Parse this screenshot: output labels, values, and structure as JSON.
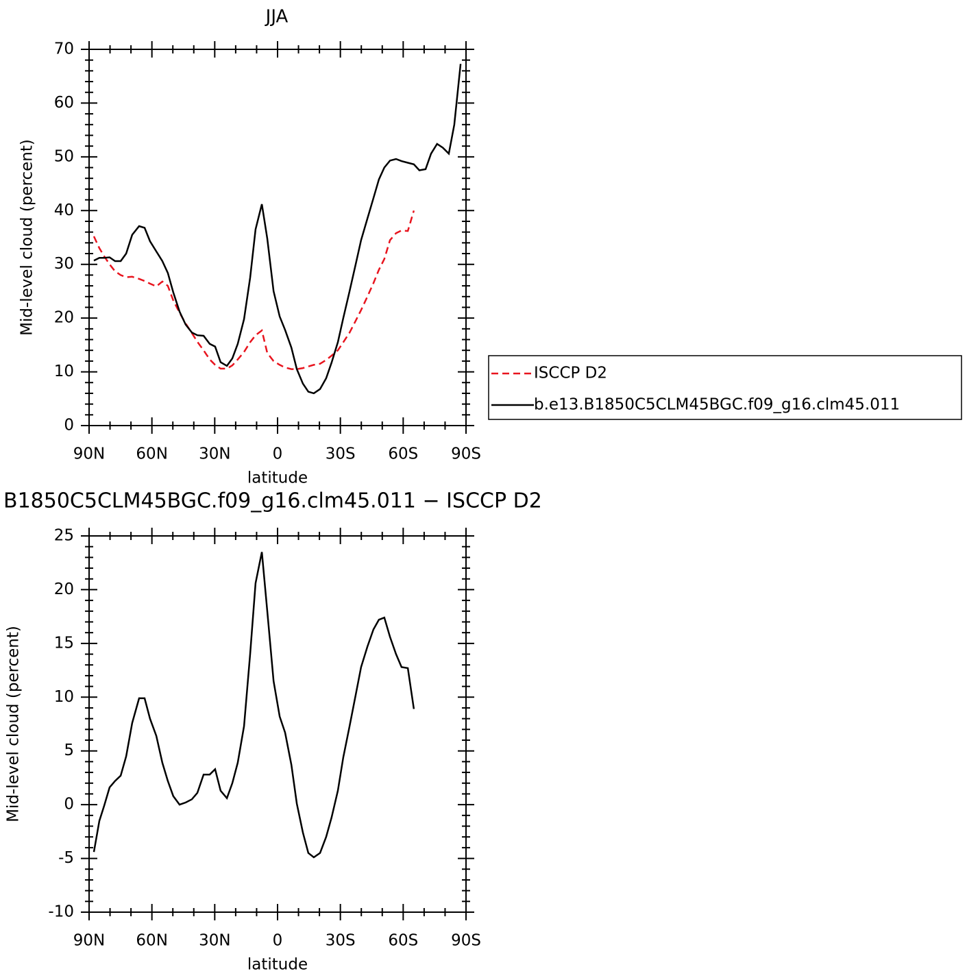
{
  "chart_data": [
    {
      "type": "line",
      "title": "JJA",
      "xlabel": "latitude",
      "ylabel": "Mid-level cloud (percent)",
      "x": [
        87.7,
        85.1,
        82.8,
        80.2,
        77.6,
        74.9,
        72.3,
        69.4,
        66.1,
        63.5,
        60.9,
        57.9,
        55.0,
        52.4,
        49.8,
        46.8,
        43.9,
        40.9,
        38.3,
        35.3,
        32.4,
        29.8,
        27.2,
        24.2,
        21.6,
        19.0,
        16.0,
        13.1,
        10.5,
        7.5,
        4.9,
        1.9,
        -1.0,
        -3.6,
        -6.6,
        -9.2,
        -12.1,
        -14.7,
        -17.3,
        -20.3,
        -23.2,
        -25.8,
        -28.8,
        -31.4,
        -34.4,
        -37.3,
        -39.9,
        -42.9,
        -45.8,
        -48.4,
        -51.0,
        -53.7,
        -56.6,
        -59.2,
        -62.2,
        -65.1,
        -67.7,
        -70.7,
        -73.3,
        -76.2,
        -78.9,
        -81.8,
        -84.4,
        -87.4
      ],
      "series": [
        {
          "name": "ISCCP D2",
          "color": "#e8141e",
          "line_style": "dashed",
          "values": [
            35.2,
            33,
            31.5,
            30,
            28.7,
            28,
            27.6,
            27.7,
            27.3,
            26.9,
            26.4,
            25.9,
            26.8,
            26,
            23.3,
            21,
            19,
            17.2,
            15.6,
            14,
            12.3,
            11.3,
            10.6,
            10.6,
            11.2,
            12.3,
            13.7,
            15.5,
            16.8,
            17.7,
            13.5,
            12,
            11.3,
            10.8,
            10.5,
            10.5,
            10.7,
            11,
            11.3,
            11.5,
            12.2,
            13,
            14,
            15.5,
            17.3,
            19.5,
            21.5,
            24,
            26.5,
            29,
            31,
            34.5,
            35.8,
            36.3,
            36.2,
            40,
            null,
            null,
            null,
            null,
            null,
            null,
            null,
            null
          ]
        },
        {
          "name": "b.e13.B1850C5CLM45BGC.f09_g16.clm45.011",
          "color": "#000000",
          "line_style": "solid",
          "values": [
            30.7,
            31.2,
            31.2,
            31.3,
            30.6,
            30.6,
            32,
            35.5,
            37.1,
            36.8,
            34.3,
            32.4,
            30.6,
            28.4,
            24.8,
            21.2,
            18.8,
            17.3,
            16.8,
            16.7,
            15.2,
            14.7,
            11.8,
            11.1,
            12.5,
            15.2,
            19.8,
            27.5,
            36.5,
            41.2,
            34.8,
            25,
            20.3,
            17.8,
            14.5,
            10.5,
            7.8,
            6.3,
            6,
            6.8,
            8.8,
            11.7,
            15.5,
            20,
            25,
            30,
            34.5,
            38.5,
            42.3,
            45.8,
            48,
            49.3,
            49.6,
            49.2,
            48.9,
            48.6,
            47.5,
            47.7,
            50.6,
            52.4,
            51.7,
            50.6,
            56,
            67.3
          ]
        }
      ],
      "xlim": [
        90,
        -90
      ],
      "xticks": [
        {
          "value": 90,
          "label": "90N"
        },
        {
          "value": 60,
          "label": "60N"
        },
        {
          "value": 30,
          "label": "30N"
        },
        0,
        {
          "value": -30,
          "label": "30S"
        },
        {
          "value": -60,
          "label": "60S"
        },
        {
          "value": -90,
          "label": "90S"
        }
      ],
      "ylim": [
        0,
        70
      ],
      "yticks": [
        0,
        10,
        20,
        30,
        40,
        50,
        60,
        70
      ],
      "legend": "right"
    },
    {
      "type": "line",
      "title": "B1850C5CLM45BGC.f09_g16.clm45.011 − ISCCP D2",
      "xlabel": "latitude",
      "ylabel": "Mid-level cloud (percent)",
      "x": [
        87.7,
        85.1,
        82.8,
        80.2,
        77.6,
        74.9,
        72.3,
        69.4,
        66.1,
        63.5,
        60.9,
        57.9,
        55.0,
        52.4,
        49.8,
        46.8,
        43.9,
        40.9,
        38.3,
        35.3,
        32.4,
        29.8,
        27.2,
        24.2,
        21.6,
        19.0,
        16.0,
        13.1,
        10.5,
        7.5,
        4.9,
        1.9,
        -1.0,
        -3.6,
        -6.6,
        -9.2,
        -12.1,
        -14.7,
        -17.3,
        -20.3,
        -23.2,
        -25.8,
        -28.8,
        -31.4,
        -34.4,
        -37.3,
        -39.9,
        -42.9,
        -45.8,
        -48.4,
        -51.0,
        -53.7,
        -56.6,
        -59.2,
        -62.2,
        -65.1
      ],
      "series": [
        {
          "color": "#000000",
          "line_style": "solid",
          "values": [
            -4.4,
            -1.5,
            -0.1,
            1.6,
            2.2,
            2.7,
            4.5,
            7.6,
            9.9,
            9.9,
            8,
            6.4,
            3.9,
            2.2,
            0.8,
            0,
            0.2,
            0.5,
            1.1,
            2.8,
            2.8,
            3.3,
            1.3,
            0.6,
            2,
            3.9,
            7.3,
            14,
            20.6,
            23.5,
            18,
            11.5,
            8.2,
            6.7,
            3.7,
            0.1,
            -2.6,
            -4.5,
            -4.9,
            -4.5,
            -3,
            -1.2,
            1.3,
            4.4,
            7.3,
            10.2,
            12.8,
            14.7,
            16.3,
            17.2,
            17.4,
            15.6,
            14,
            12.8,
            12.7,
            8.9
          ]
        }
      ],
      "xlim": [
        90,
        -90
      ],
      "xticks": [
        {
          "value": 90,
          "label": "90N"
        },
        {
          "value": 60,
          "label": "60N"
        },
        {
          "value": 30,
          "label": "30N"
        },
        0,
        {
          "value": -30,
          "label": "30S"
        },
        {
          "value": -60,
          "label": "60S"
        },
        {
          "value": -90,
          "label": "90S"
        }
      ],
      "ylim": [
        -10,
        25
      ],
      "yticks": [
        -10,
        -5,
        0,
        5,
        10,
        15,
        20,
        25
      ]
    }
  ]
}
